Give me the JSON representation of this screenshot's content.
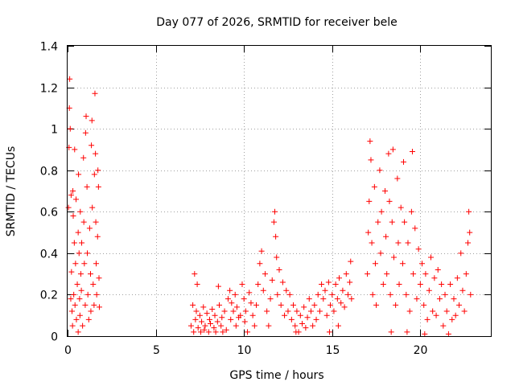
{
  "chart_data": {
    "type": "scatter",
    "title": "Day 077 of 2026, SRMTID for receiver bele",
    "xlabel": "GPS time / hours",
    "ylabel": "SRMTID / TECUs",
    "xlim": [
      0,
      24
    ],
    "ylim": [
      0,
      1.4
    ],
    "xticks": [
      0,
      5,
      10,
      15,
      20
    ],
    "xtick_labels": [
      "0",
      "5",
      "10",
      "15",
      "20"
    ],
    "yticks": [
      0,
      0.2,
      0.4,
      0.6,
      0.8,
      1,
      1.2,
      1.4
    ],
    "ytick_labels": [
      "0",
      "0.2",
      "0.4",
      "0.6",
      "0.8",
      "1",
      "1.2",
      "1.4"
    ],
    "grid": true,
    "marker": "plus",
    "marker_color": "#ff0000",
    "series": [
      {
        "name": "SRMTID",
        "points": [
          [
            0.05,
            0.62
          ],
          [
            0.08,
            0.91
          ],
          [
            0.1,
            1.1
          ],
          [
            0.12,
            1.24
          ],
          [
            0.15,
            1.0
          ],
          [
            0.2,
            0.68
          ],
          [
            0.22,
            0.31
          ],
          [
            0.25,
            0.12
          ],
          [
            0.28,
            0.05
          ],
          [
            0.3,
            0.7
          ],
          [
            0.32,
            0.58
          ],
          [
            0.35,
            0.2
          ],
          [
            0.38,
            0.45
          ],
          [
            0.4,
            0.9
          ],
          [
            0.42,
            0.15
          ],
          [
            0.45,
            0.35
          ],
          [
            0.48,
            0.66
          ],
          [
            0.5,
            0.08
          ],
          [
            0.55,
            0.25
          ],
          [
            0.6,
            0.5
          ],
          [
            0.62,
            0.78
          ],
          [
            0.65,
            0.4
          ],
          [
            0.68,
            0.18
          ],
          [
            0.7,
            0.1
          ],
          [
            0.72,
            0.6
          ],
          [
            0.75,
            0.3
          ],
          [
            0.78,
            0.22
          ],
          [
            0.8,
            0.45
          ],
          [
            0.85,
            0.05
          ],
          [
            0.9,
            0.86
          ],
          [
            0.92,
            0.55
          ],
          [
            0.95,
            0.35
          ],
          [
            1.0,
            0.15
          ],
          [
            1.02,
            0.98
          ],
          [
            1.05,
            1.06
          ],
          [
            1.1,
            0.72
          ],
          [
            1.12,
            0.4
          ],
          [
            1.15,
            0.2
          ],
          [
            1.2,
            0.08
          ],
          [
            1.25,
            0.52
          ],
          [
            1.3,
            0.3
          ],
          [
            1.32,
            0.12
          ],
          [
            1.35,
            0.92
          ],
          [
            1.38,
            1.04
          ],
          [
            1.4,
            0.62
          ],
          [
            1.45,
            0.25
          ],
          [
            1.5,
            0.15
          ],
          [
            1.52,
            0.78
          ],
          [
            1.55,
            1.17
          ],
          [
            1.58,
            0.88
          ],
          [
            1.6,
            0.55
          ],
          [
            1.62,
            0.35
          ],
          [
            1.65,
            0.2
          ],
          [
            1.7,
            0.48
          ],
          [
            1.72,
            0.8
          ],
          [
            1.75,
            0.72
          ],
          [
            1.78,
            0.28
          ],
          [
            1.8,
            0.14
          ],
          [
            0.18,
            0.18
          ],
          [
            0.6,
            0.02
          ],
          [
            7.0,
            0.05
          ],
          [
            7.1,
            0.15
          ],
          [
            7.15,
            0.02
          ],
          [
            7.2,
            0.3
          ],
          [
            7.25,
            0.08
          ],
          [
            7.3,
            0.12
          ],
          [
            7.35,
            0.25
          ],
          [
            7.4,
            0.04
          ],
          [
            7.5,
            0.1
          ],
          [
            7.55,
            0.02
          ],
          [
            7.6,
            0.07
          ],
          [
            7.7,
            0.14
          ],
          [
            7.75,
            0.03
          ],
          [
            7.8,
            0.05
          ],
          [
            7.9,
            0.11
          ],
          [
            8.0,
            0.02
          ],
          [
            8.05,
            0.08
          ],
          [
            8.1,
            0.06
          ],
          [
            8.2,
            0.13
          ],
          [
            8.3,
            0.04
          ],
          [
            8.35,
            0.1
          ],
          [
            8.4,
            0.02
          ],
          [
            8.5,
            0.07
          ],
          [
            8.55,
            0.24
          ],
          [
            8.6,
            0.15
          ],
          [
            8.7,
            0.05
          ],
          [
            8.75,
            0.09
          ],
          [
            8.8,
            0.02
          ],
          [
            8.9,
            0.12
          ],
          [
            9.0,
            0.03
          ],
          [
            9.1,
            0.18
          ],
          [
            9.2,
            0.22
          ],
          [
            9.25,
            0.08
          ],
          [
            9.3,
            0.16
          ],
          [
            9.4,
            0.12
          ],
          [
            9.5,
            0.2
          ],
          [
            9.55,
            0.05
          ],
          [
            9.6,
            0.14
          ],
          [
            9.7,
            0.09
          ],
          [
            9.8,
            0.1
          ],
          [
            9.9,
            0.25
          ],
          [
            10.0,
            0.18
          ],
          [
            10.05,
            0.07
          ],
          [
            10.1,
            0.12
          ],
          [
            10.2,
            0.02
          ],
          [
            10.3,
            0.21
          ],
          [
            10.4,
            0.16
          ],
          [
            10.5,
            0.1
          ],
          [
            10.6,
            0.05
          ],
          [
            10.7,
            0.15
          ],
          [
            10.8,
            0.25
          ],
          [
            10.9,
            0.35
          ],
          [
            11.0,
            0.41
          ],
          [
            11.1,
            0.22
          ],
          [
            11.2,
            0.3
          ],
          [
            11.3,
            0.12
          ],
          [
            11.4,
            0.05
          ],
          [
            11.5,
            0.18
          ],
          [
            11.6,
            0.27
          ],
          [
            11.7,
            0.55
          ],
          [
            11.75,
            0.6
          ],
          [
            11.8,
            0.48
          ],
          [
            11.85,
            0.38
          ],
          [
            11.9,
            0.2
          ],
          [
            12.0,
            0.32
          ],
          [
            12.1,
            0.15
          ],
          [
            12.2,
            0.26
          ],
          [
            12.3,
            0.1
          ],
          [
            12.4,
            0.22
          ],
          [
            12.5,
            0.12
          ],
          [
            12.6,
            0.2
          ],
          [
            12.7,
            0.08
          ],
          [
            12.8,
            0.15
          ],
          [
            12.9,
            0.05
          ],
          [
            13.0,
            0.12
          ],
          [
            13.1,
            0.02
          ],
          [
            13.2,
            0.1
          ],
          [
            13.3,
            0.06
          ],
          [
            13.4,
            0.14
          ],
          [
            13.5,
            0.04
          ],
          [
            13.6,
            0.09
          ],
          [
            13.7,
            0.18
          ],
          [
            13.8,
            0.12
          ],
          [
            13.9,
            0.05
          ],
          [
            14.0,
            0.15
          ],
          [
            14.1,
            0.08
          ],
          [
            14.2,
            0.2
          ],
          [
            14.3,
            0.12
          ],
          [
            14.4,
            0.25
          ],
          [
            14.5,
            0.18
          ],
          [
            14.6,
            0.22
          ],
          [
            14.7,
            0.1
          ],
          [
            14.8,
            0.26
          ],
          [
            14.9,
            0.15
          ],
          [
            15.0,
            0.2
          ],
          [
            15.1,
            0.12
          ],
          [
            15.2,
            0.25
          ],
          [
            15.3,
            0.18
          ],
          [
            15.4,
            0.28
          ],
          [
            15.5,
            0.16
          ],
          [
            15.6,
            0.22
          ],
          [
            15.7,
            0.14
          ],
          [
            15.8,
            0.3
          ],
          [
            15.9,
            0.2
          ],
          [
            16.0,
            0.26
          ],
          [
            16.05,
            0.36
          ],
          [
            16.1,
            0.18
          ],
          [
            15.35,
            0.05
          ],
          [
            14.85,
            0.02
          ],
          [
            12.95,
            0.02
          ],
          [
            17.0,
            0.3
          ],
          [
            17.05,
            0.5
          ],
          [
            17.1,
            0.65
          ],
          [
            17.15,
            0.94
          ],
          [
            17.2,
            0.85
          ],
          [
            17.25,
            0.45
          ],
          [
            17.3,
            0.2
          ],
          [
            17.4,
            0.72
          ],
          [
            17.45,
            0.35
          ],
          [
            17.5,
            0.15
          ],
          [
            17.6,
            0.55
          ],
          [
            17.7,
            0.8
          ],
          [
            17.75,
            0.4
          ],
          [
            17.8,
            0.6
          ],
          [
            17.9,
            0.25
          ],
          [
            18.0,
            0.7
          ],
          [
            18.05,
            0.48
          ],
          [
            18.1,
            0.3
          ],
          [
            18.2,
            0.88
          ],
          [
            18.25,
            0.65
          ],
          [
            18.3,
            0.2
          ],
          [
            18.4,
            0.55
          ],
          [
            18.45,
            0.9
          ],
          [
            18.5,
            0.38
          ],
          [
            18.6,
            0.15
          ],
          [
            18.7,
            0.76
          ],
          [
            18.75,
            0.45
          ],
          [
            18.8,
            0.25
          ],
          [
            18.9,
            0.62
          ],
          [
            19.0,
            0.35
          ],
          [
            19.05,
            0.84
          ],
          [
            19.1,
            0.55
          ],
          [
            19.2,
            0.2
          ],
          [
            19.3,
            0.45
          ],
          [
            19.4,
            0.12
          ],
          [
            19.5,
            0.6
          ],
          [
            19.55,
            0.89
          ],
          [
            19.6,
            0.3
          ],
          [
            19.7,
            0.52
          ],
          [
            19.8,
            0.18
          ],
          [
            19.9,
            0.42
          ],
          [
            20.0,
            0.25
          ],
          [
            20.1,
            0.35
          ],
          [
            20.2,
            0.15
          ],
          [
            20.3,
            0.3
          ],
          [
            20.4,
            0.08
          ],
          [
            20.5,
            0.22
          ],
          [
            20.6,
            0.38
          ],
          [
            20.7,
            0.12
          ],
          [
            20.8,
            0.28
          ],
          [
            20.9,
            0.1
          ],
          [
            21.0,
            0.32
          ],
          [
            21.1,
            0.18
          ],
          [
            21.2,
            0.25
          ],
          [
            21.3,
            0.05
          ],
          [
            21.4,
            0.2
          ],
          [
            21.5,
            0.12
          ],
          [
            21.6,
            0.01
          ],
          [
            21.7,
            0.25
          ],
          [
            21.8,
            0.08
          ],
          [
            21.9,
            0.18
          ],
          [
            22.0,
            0.1
          ],
          [
            22.1,
            0.28
          ],
          [
            22.2,
            0.15
          ],
          [
            22.3,
            0.4
          ],
          [
            22.4,
            0.22
          ],
          [
            22.5,
            0.12
          ],
          [
            22.6,
            0.3
          ],
          [
            22.7,
            0.45
          ],
          [
            22.75,
            0.6
          ],
          [
            22.8,
            0.5
          ],
          [
            22.85,
            0.2
          ],
          [
            18.35,
            0.02
          ],
          [
            19.25,
            0.02
          ],
          [
            20.25,
            0.01
          ]
        ]
      }
    ]
  }
}
